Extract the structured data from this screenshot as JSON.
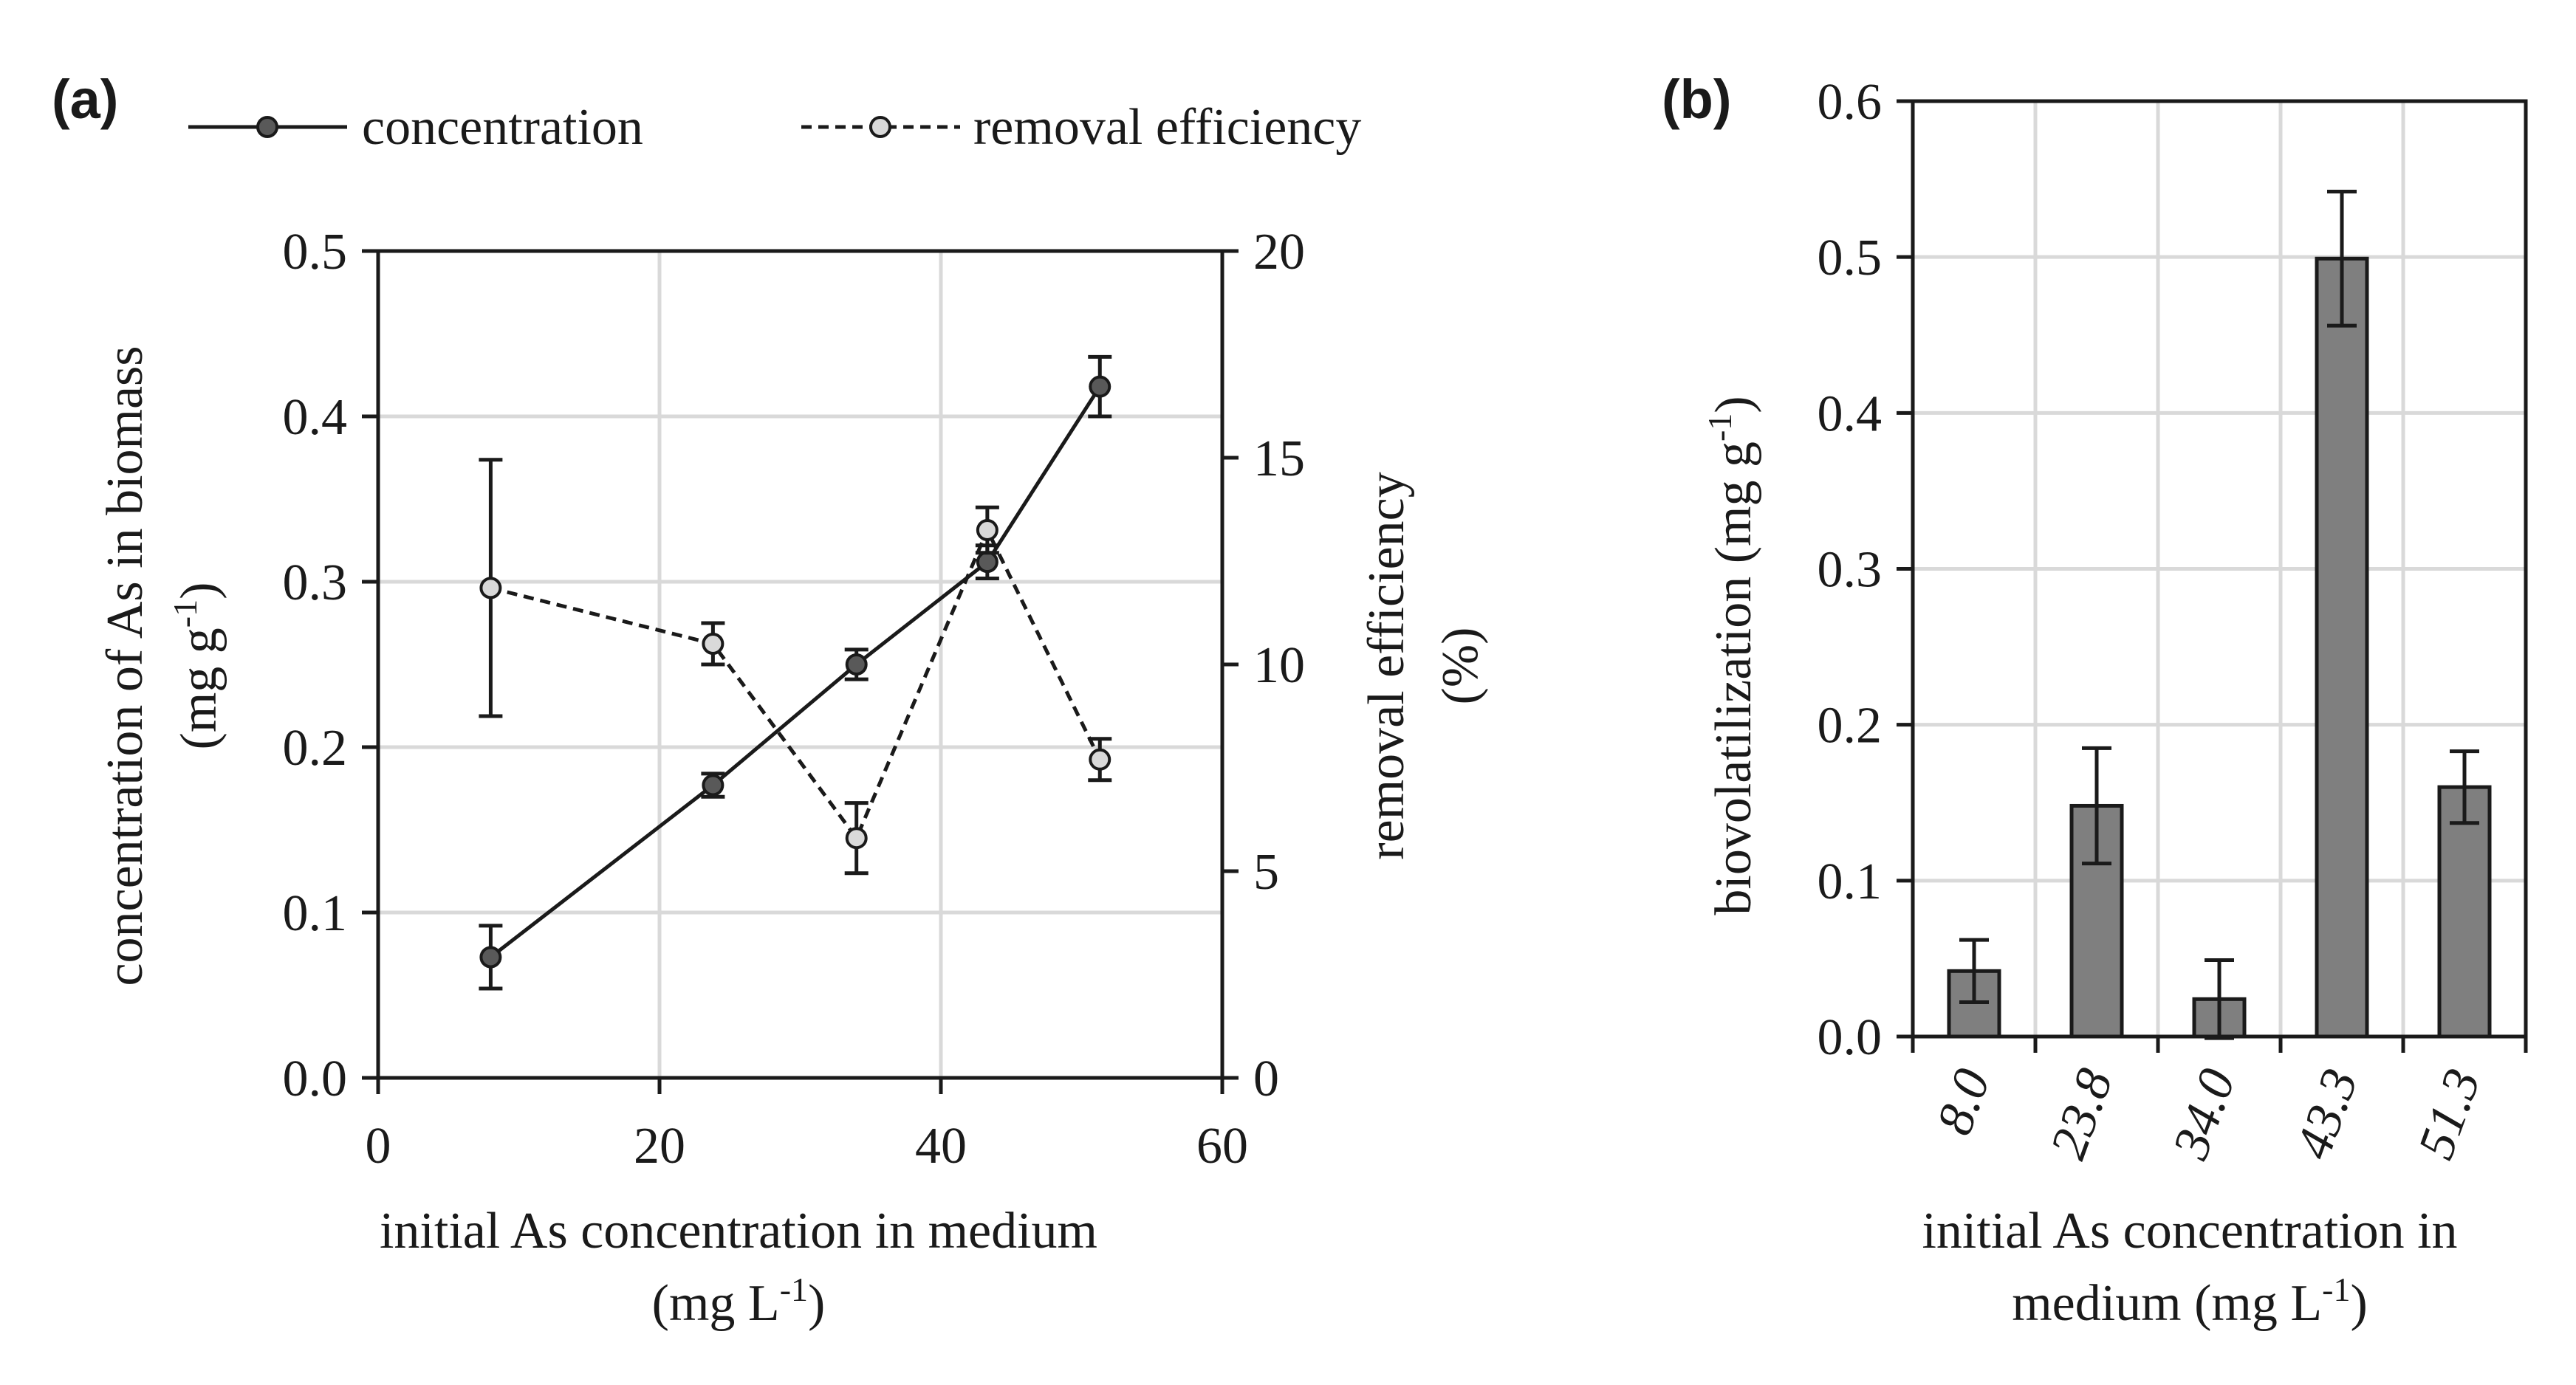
{
  "chart_data": [
    {
      "panel": "(a)",
      "type": "line",
      "xlabel_line1": "initial As concentration in medium",
      "xlabel_line2_prefix": "(mg L",
      "xlabel_line2_sup": "-1",
      "xlabel_line2_suffix": ")",
      "ylabel_line1": "concentration of As in biomass",
      "ylabel_line2_prefix": "(mg g",
      "ylabel_line2_sup": "-1",
      "ylabel_line2_suffix": ")",
      "y2label_line1": "removal efficiency",
      "y2label_line2": "(%)",
      "xlim": [
        0,
        60
      ],
      "ylim": [
        0,
        0.5
      ],
      "y2lim": [
        0,
        20
      ],
      "x_ticks": [
        "0",
        "20",
        "40",
        "60"
      ],
      "y_ticks": [
        "0.0",
        "0.1",
        "0.2",
        "0.3",
        "0.4",
        "0.5"
      ],
      "y2_ticks": [
        "0",
        "5",
        "10",
        "15",
        "20"
      ],
      "legend": [
        "concentration",
        "removal efficiency"
      ],
      "grid": true,
      "series": [
        {
          "name": "concentration",
          "axis": "left",
          "style": "solid",
          "x": [
            8.0,
            23.8,
            34.0,
            43.3,
            51.3
          ],
          "y": [
            0.073,
            0.177,
            0.25,
            0.312,
            0.418
          ],
          "err": [
            0.019,
            0.007,
            0.009,
            0.01,
            0.018
          ]
        },
        {
          "name": "removal efficiency",
          "axis": "right",
          "style": "dashed",
          "x": [
            8.0,
            23.8,
            34.0,
            43.3,
            51.3
          ],
          "y": [
            11.85,
            10.5,
            5.8,
            13.25,
            7.7
          ],
          "err": [
            3.1,
            0.5,
            0.85,
            0.55,
            0.5
          ]
        }
      ]
    },
    {
      "panel": "(b)",
      "type": "bar",
      "categories": [
        "8.0",
        "23.8",
        "34.0",
        "43.3",
        "51.3"
      ],
      "values": [
        0.042,
        0.148,
        0.024,
        0.499,
        0.16
      ],
      "err": [
        0.02,
        0.037,
        0.025,
        0.043,
        0.023
      ],
      "ylim": [
        0,
        0.6
      ],
      "y_ticks": [
        "0.0",
        "0.1",
        "0.2",
        "0.3",
        "0.4",
        "0.5",
        "0.6"
      ],
      "ylabel_prefix": "biovolatilization (mg g",
      "ylabel_sup": "-1",
      "ylabel_suffix": ")",
      "xlabel_line1": "initial As concentration in",
      "xlabel_line2_prefix": "medium (mg L",
      "xlabel_line2_sup": "-1",
      "xlabel_line2_suffix": ")",
      "bar_color": "#7f7f7f",
      "grid": true
    }
  ]
}
